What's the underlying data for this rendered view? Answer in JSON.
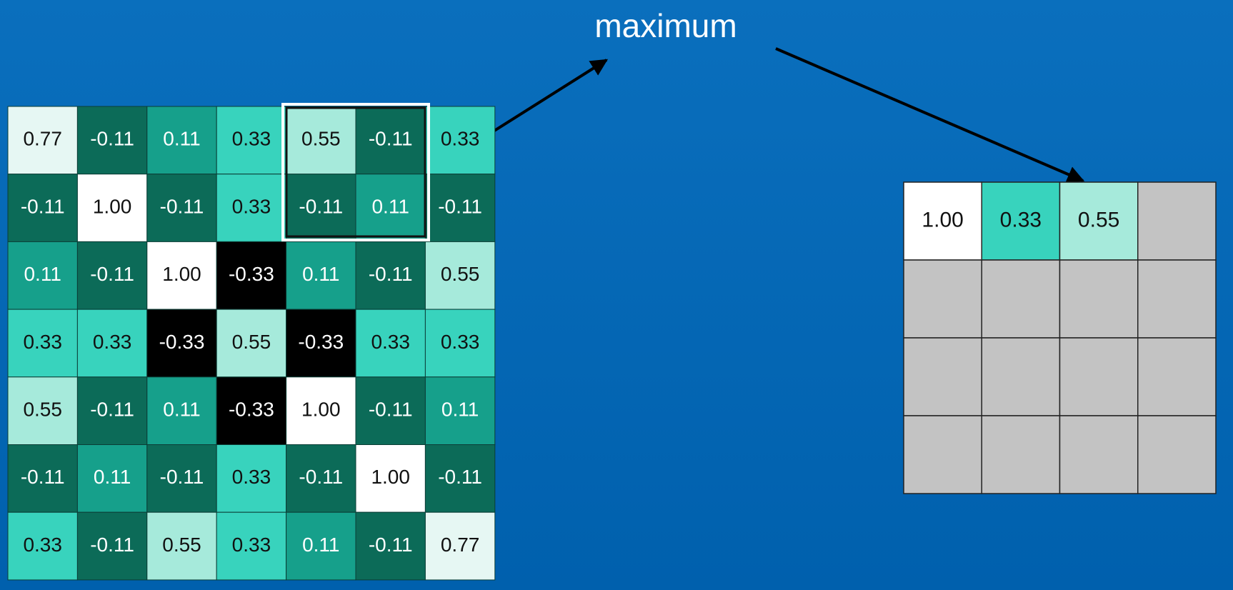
{
  "label": "maximum",
  "input_grid": {
    "rows": [
      [
        "0.77",
        "-0.11",
        "0.11",
        "0.33",
        "0.55",
        "-0.11",
        "0.33"
      ],
      [
        "-0.11",
        "1.00",
        "-0.11",
        "0.33",
        "-0.11",
        "0.11",
        "-0.11"
      ],
      [
        "0.11",
        "-0.11",
        "1.00",
        "-0.33",
        "0.11",
        "-0.11",
        "0.55"
      ],
      [
        "0.33",
        "0.33",
        "-0.33",
        "0.55",
        "-0.33",
        "0.33",
        "0.33"
      ],
      [
        "0.55",
        "-0.11",
        "0.11",
        "-0.33",
        "1.00",
        "-0.11",
        "0.11"
      ],
      [
        "-0.11",
        "0.11",
        "-0.11",
        "0.33",
        "-0.11",
        "1.00",
        "-0.11"
      ],
      [
        "0.33",
        "-0.11",
        "0.55",
        "0.33",
        "0.11",
        "-0.11",
        "0.77"
      ]
    ]
  },
  "output_grid": {
    "rows": [
      [
        "1.00",
        "0.33",
        "0.55"
      ]
    ]
  }
}
